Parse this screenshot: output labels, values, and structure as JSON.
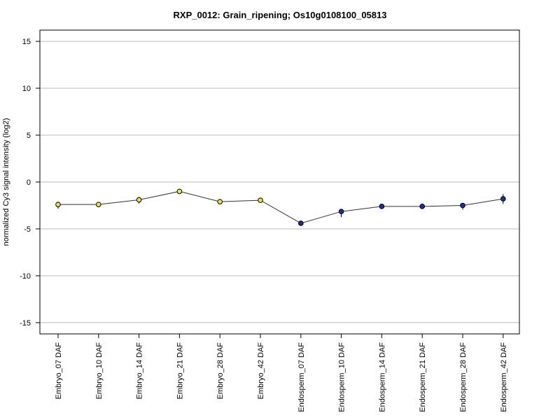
{
  "chart_data": {
    "type": "line",
    "title": "RXP_0012: Grain_ripening; Os10g0108100_05813",
    "xlabel": "",
    "ylabel": "normalized Cy3 signal intensity (log2)",
    "ylim": [
      -16.2,
      16.2
    ],
    "yticks": [
      15,
      10,
      5,
      0,
      -5,
      -10,
      -15
    ],
    "grid": true,
    "categories": [
      "Embryo_07 DAF",
      "Embryo_10 DAF",
      "Embryo_14 DAF",
      "Embryo_21 DAF",
      "Embryo_28 DAF",
      "Embryo_42 DAF",
      "Endosperm_07 DAF",
      "Endosperm_10 DAF",
      "Endosperm_14 DAF",
      "Endosperm_21 DAF",
      "Endosperm_28 DAF",
      "Endosperm_42 DAF"
    ],
    "values": [
      -2.4,
      -2.4,
      -1.9,
      -1.0,
      -2.1,
      -1.95,
      -4.4,
      -3.15,
      -2.6,
      -2.6,
      -2.5,
      -1.8
    ],
    "error_low": [
      -2.85,
      -2.6,
      -2.3,
      -1.1,
      -2.3,
      -2.1,
      -4.5,
      -3.75,
      -2.75,
      -2.7,
      -2.95,
      -2.35
    ],
    "error_high": [
      -2.1,
      -2.25,
      -1.6,
      -0.8,
      -1.95,
      -1.8,
      -4.25,
      -2.95,
      -2.45,
      -2.5,
      -2.3,
      -1.3
    ],
    "point_colors": [
      "#f2e436",
      "#f2e436",
      "#f2e436",
      "#f2e436",
      "#f2e436",
      "#f2e436",
      "#1a2ea8",
      "#1a2ea8",
      "#1a2ea8",
      "#1a2ea8",
      "#1a2ea8",
      "#1a2ea8"
    ],
    "line_color": "#333333",
    "grid_color": "#bbbbbb"
  }
}
